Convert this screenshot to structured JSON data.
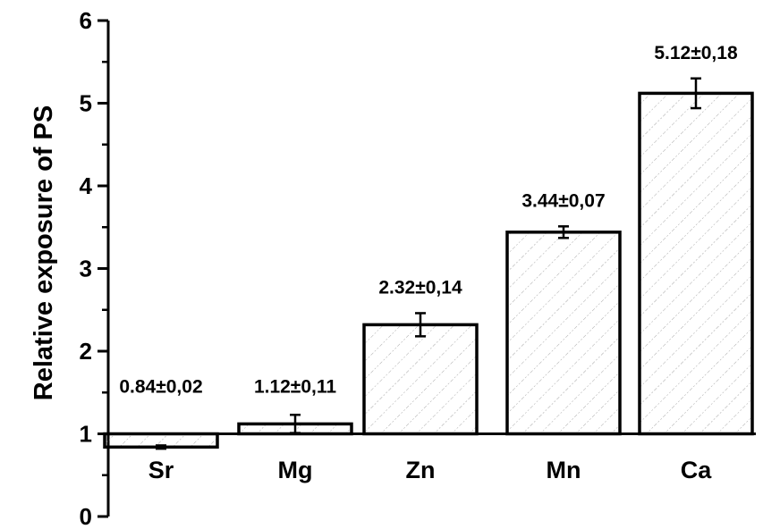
{
  "chart_data": {
    "type": "bar",
    "title": "",
    "xlabel": "",
    "ylabel": "Relative exposure of PS",
    "ylim": [
      0,
      6
    ],
    "y_ticks": [
      "0",
      "1",
      "2",
      "3",
      "4",
      "5",
      "6"
    ],
    "baseline": 1,
    "categories": [
      "Sr",
      "Mg",
      "Zn",
      "Mn",
      "Ca"
    ],
    "values": [
      0.84,
      1.12,
      2.32,
      3.44,
      5.12
    ],
    "errors": [
      0.02,
      0.11,
      0.14,
      0.07,
      0.18
    ],
    "value_labels": [
      "0.84±0,02",
      "1.12±0,11",
      "2.32±0,14",
      "3.44±0,07",
      "5.12±0,18"
    ],
    "bar_fill": "hatched",
    "grid": false,
    "legend": "none",
    "colors": {
      "bar_edge": "#000000",
      "hatch": "#9a9a9a",
      "background": "#ffffff"
    }
  }
}
